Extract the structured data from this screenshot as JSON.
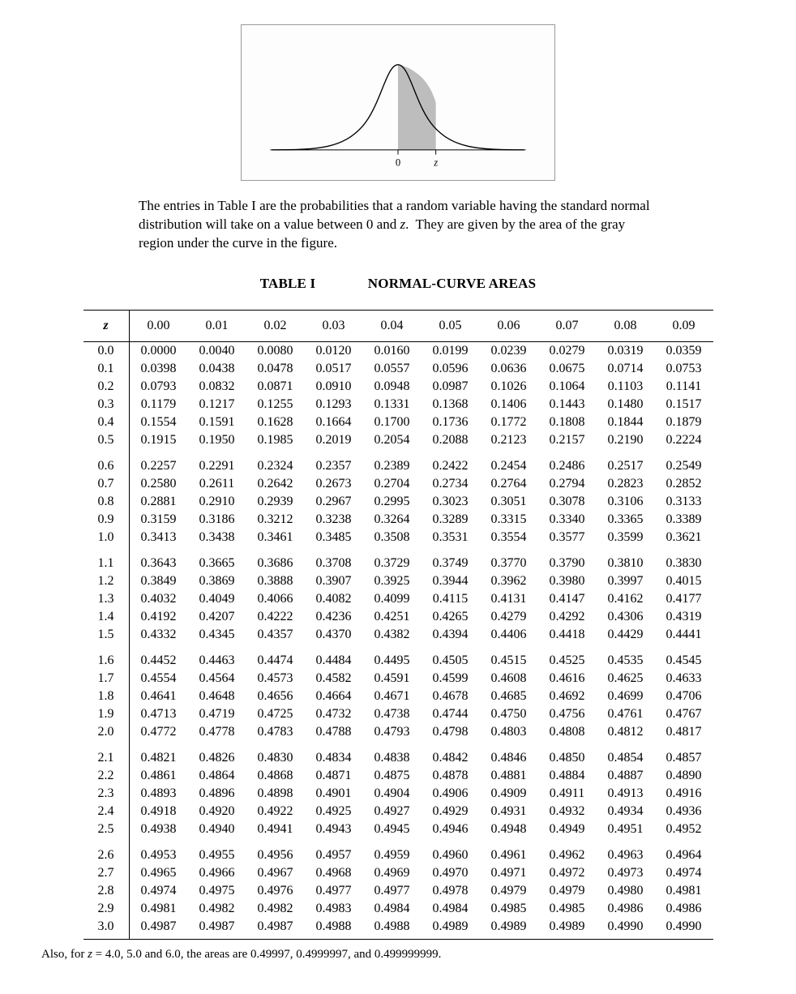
{
  "figure": {
    "border_color": "#999999",
    "bg_color": "#fdfdfd",
    "curve_stroke": "#000000",
    "shade_fill": "#bdbdbd",
    "axis_stroke": "#000000",
    "label_0": "0",
    "label_z": "z"
  },
  "caption": "The entries in Table I are the probabilities that a random variable having the standard normal distribution will take on a value between 0 and z.  They are given by the area of the gray region under the curve in the figure.",
  "title_left": "TABLE I",
  "title_right": "NORMAL-CURVE AREAS",
  "header_first": "z",
  "col_headers": [
    "0.00",
    "0.01",
    "0.02",
    "0.03",
    "0.04",
    "0.05",
    "0.06",
    "0.07",
    "0.08",
    "0.09"
  ],
  "row_labels": [
    "0.0",
    "0.1",
    "0.2",
    "0.3",
    "0.4",
    "0.5",
    "0.6",
    "0.7",
    "0.8",
    "0.9",
    "1.0",
    "1.1",
    "1.2",
    "1.3",
    "1.4",
    "1.5",
    "1.6",
    "1.7",
    "1.8",
    "1.9",
    "2.0",
    "2.1",
    "2.2",
    "2.3",
    "2.4",
    "2.5",
    "2.6",
    "2.7",
    "2.8",
    "2.9",
    "3.0"
  ],
  "rows": [
    [
      "0.0000",
      "0.0040",
      "0.0080",
      "0.0120",
      "0.0160",
      "0.0199",
      "0.0239",
      "0.0279",
      "0.0319",
      "0.0359"
    ],
    [
      "0.0398",
      "0.0438",
      "0.0478",
      "0.0517",
      "0.0557",
      "0.0596",
      "0.0636",
      "0.0675",
      "0.0714",
      "0.0753"
    ],
    [
      "0.0793",
      "0.0832",
      "0.0871",
      "0.0910",
      "0.0948",
      "0.0987",
      "0.1026",
      "0.1064",
      "0.1103",
      "0.1141"
    ],
    [
      "0.1179",
      "0.1217",
      "0.1255",
      "0.1293",
      "0.1331",
      "0.1368",
      "0.1406",
      "0.1443",
      "0.1480",
      "0.1517"
    ],
    [
      "0.1554",
      "0.1591",
      "0.1628",
      "0.1664",
      "0.1700",
      "0.1736",
      "0.1772",
      "0.1808",
      "0.1844",
      "0.1879"
    ],
    [
      "0.1915",
      "0.1950",
      "0.1985",
      "0.2019",
      "0.2054",
      "0.2088",
      "0.2123",
      "0.2157",
      "0.2190",
      "0.2224"
    ],
    [
      "0.2257",
      "0.2291",
      "0.2324",
      "0.2357",
      "0.2389",
      "0.2422",
      "0.2454",
      "0.2486",
      "0.2517",
      "0.2549"
    ],
    [
      "0.2580",
      "0.2611",
      "0.2642",
      "0.2673",
      "0.2704",
      "0.2734",
      "0.2764",
      "0.2794",
      "0.2823",
      "0.2852"
    ],
    [
      "0.2881",
      "0.2910",
      "0.2939",
      "0.2967",
      "0.2995",
      "0.3023",
      "0.3051",
      "0.3078",
      "0.3106",
      "0.3133"
    ],
    [
      "0.3159",
      "0.3186",
      "0.3212",
      "0.3238",
      "0.3264",
      "0.3289",
      "0.3315",
      "0.3340",
      "0.3365",
      "0.3389"
    ],
    [
      "0.3413",
      "0.3438",
      "0.3461",
      "0.3485",
      "0.3508",
      "0.3531",
      "0.3554",
      "0.3577",
      "0.3599",
      "0.3621"
    ],
    [
      "0.3643",
      "0.3665",
      "0.3686",
      "0.3708",
      "0.3729",
      "0.3749",
      "0.3770",
      "0.3790",
      "0.3810",
      "0.3830"
    ],
    [
      "0.3849",
      "0.3869",
      "0.3888",
      "0.3907",
      "0.3925",
      "0.3944",
      "0.3962",
      "0.3980",
      "0.3997",
      "0.4015"
    ],
    [
      "0.4032",
      "0.4049",
      "0.4066",
      "0.4082",
      "0.4099",
      "0.4115",
      "0.4131",
      "0.4147",
      "0.4162",
      "0.4177"
    ],
    [
      "0.4192",
      "0.4207",
      "0.4222",
      "0.4236",
      "0.4251",
      "0.4265",
      "0.4279",
      "0.4292",
      "0.4306",
      "0.4319"
    ],
    [
      "0.4332",
      "0.4345",
      "0.4357",
      "0.4370",
      "0.4382",
      "0.4394",
      "0.4406",
      "0.4418",
      "0.4429",
      "0.4441"
    ],
    [
      "0.4452",
      "0.4463",
      "0.4474",
      "0.4484",
      "0.4495",
      "0.4505",
      "0.4515",
      "0.4525",
      "0.4535",
      "0.4545"
    ],
    [
      "0.4554",
      "0.4564",
      "0.4573",
      "0.4582",
      "0.4591",
      "0.4599",
      "0.4608",
      "0.4616",
      "0.4625",
      "0.4633"
    ],
    [
      "0.4641",
      "0.4648",
      "0.4656",
      "0.4664",
      "0.4671",
      "0.4678",
      "0.4685",
      "0.4692",
      "0.4699",
      "0.4706"
    ],
    [
      "0.4713",
      "0.4719",
      "0.4725",
      "0.4732",
      "0.4738",
      "0.4744",
      "0.4750",
      "0.4756",
      "0.4761",
      "0.4767"
    ],
    [
      "0.4772",
      "0.4778",
      "0.4783",
      "0.4788",
      "0.4793",
      "0.4798",
      "0.4803",
      "0.4808",
      "0.4812",
      "0.4817"
    ],
    [
      "0.4821",
      "0.4826",
      "0.4830",
      "0.4834",
      "0.4838",
      "0.4842",
      "0.4846",
      "0.4850",
      "0.4854",
      "0.4857"
    ],
    [
      "0.4861",
      "0.4864",
      "0.4868",
      "0.4871",
      "0.4875",
      "0.4878",
      "0.4881",
      "0.4884",
      "0.4887",
      "0.4890"
    ],
    [
      "0.4893",
      "0.4896",
      "0.4898",
      "0.4901",
      "0.4904",
      "0.4906",
      "0.4909",
      "0.4911",
      "0.4913",
      "0.4916"
    ],
    [
      "0.4918",
      "0.4920",
      "0.4922",
      "0.4925",
      "0.4927",
      "0.4929",
      "0.4931",
      "0.4932",
      "0.4934",
      "0.4936"
    ],
    [
      "0.4938",
      "0.4940",
      "0.4941",
      "0.4943",
      "0.4945",
      "0.4946",
      "0.4948",
      "0.4949",
      "0.4951",
      "0.4952"
    ],
    [
      "0.4953",
      "0.4955",
      "0.4956",
      "0.4957",
      "0.4959",
      "0.4960",
      "0.4961",
      "0.4962",
      "0.4963",
      "0.4964"
    ],
    [
      "0.4965",
      "0.4966",
      "0.4967",
      "0.4968",
      "0.4969",
      "0.4970",
      "0.4971",
      "0.4972",
      "0.4973",
      "0.4974"
    ],
    [
      "0.4974",
      "0.4975",
      "0.4976",
      "0.4977",
      "0.4977",
      "0.4978",
      "0.4979",
      "0.4979",
      "0.4980",
      "0.4981"
    ],
    [
      "0.4981",
      "0.4982",
      "0.4982",
      "0.4983",
      "0.4984",
      "0.4984",
      "0.4985",
      "0.4985",
      "0.4986",
      "0.4986"
    ],
    [
      "0.4987",
      "0.4987",
      "0.4987",
      "0.4988",
      "0.4988",
      "0.4989",
      "0.4989",
      "0.4989",
      "0.4990",
      "0.4990"
    ]
  ],
  "group_starts": [
    0,
    6,
    11,
    16,
    21,
    26
  ],
  "footnote": "Also, for z = 4.0, 5.0 and 6.0, the areas are 0.49997, 0.4999997, and 0.499999999."
}
